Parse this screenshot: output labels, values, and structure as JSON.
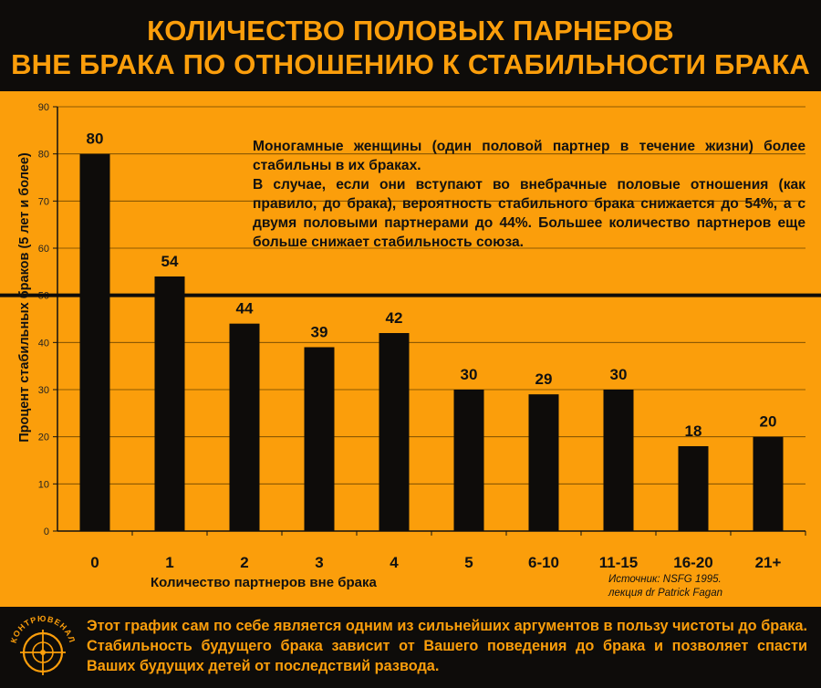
{
  "header": {
    "title_line1": "КОЛИЧЕСТВО ПОЛОВЫХ ПАРНЕРОВ",
    "title_line2": "ВНЕ БРАКА ПО ОТНОШЕНИЮ К СТАБИЛЬНОСТИ БРАКА"
  },
  "chart_data": {
    "type": "bar",
    "categories": [
      "0",
      "1",
      "2",
      "3",
      "4",
      "5",
      "6-10",
      "11-15",
      "16-20",
      "21+"
    ],
    "values": [
      80,
      54,
      44,
      39,
      42,
      30,
      29,
      30,
      18,
      20
    ],
    "data_labels": [
      "80",
      "54",
      "44",
      "39",
      "42",
      "30",
      "29",
      "30",
      "18",
      "20"
    ],
    "xlabel": "Количество партнеров вне брака",
    "ylabel": "Процент стабильных браков (5 лет и более)",
    "ylim": [
      0,
      90
    ],
    "yticks": [
      0,
      10,
      20,
      30,
      40,
      50,
      60,
      70,
      80,
      90
    ],
    "reference_line": 50,
    "grid": true,
    "bar_color": "#0e0c0a",
    "background_color": "#fb9e0b"
  },
  "annotation": {
    "paragraph1": "Моногамные женщины (один половой партнер в течение жизни) более стабильны в их браках.",
    "paragraph2": "В случае, если они вступают во внебрачные половые отношения (как правило, до брака), вероятность стабильного брака снижается до 54%, а с двумя половыми партнерами до 44%. Большее количество партнеров еще больше снижает стабильность союза."
  },
  "source": {
    "line1": "Источник: NSFG 1995.",
    "line2": "лекция dr Patrick Fagan"
  },
  "footer": {
    "text": "Этот график сам по себе является одним из сильнейших аргументов в пользу чистоты до брака. Стабильность будущего брака зависит от Вашего поведения до брака и позволяет спасти Ваших будущих детей от последствий развода.",
    "logo_text": "КОНТРЮВЕНАЛ"
  },
  "colors": {
    "accent": "#fb9e0b",
    "dark": "#0e0c0a"
  }
}
